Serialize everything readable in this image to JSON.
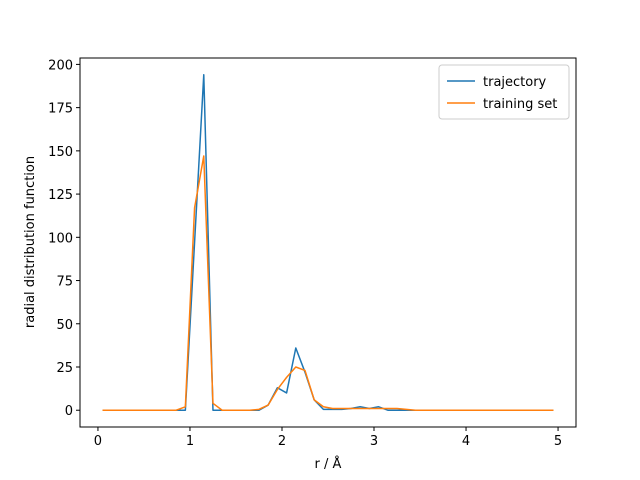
{
  "chart_data": {
    "type": "line",
    "x_label": "r / Å",
    "y_label": "radial distribution function",
    "x": [
      0.05,
      0.15,
      0.25,
      0.35,
      0.45,
      0.55,
      0.65,
      0.75,
      0.85,
      0.95,
      1.05,
      1.15,
      1.25,
      1.35,
      1.45,
      1.55,
      1.65,
      1.75,
      1.85,
      1.95,
      2.05,
      2.15,
      2.25,
      2.35,
      2.45,
      2.55,
      2.65,
      2.75,
      2.85,
      2.95,
      3.05,
      3.15,
      3.25,
      3.35,
      3.45,
      3.55,
      3.65,
      3.75,
      3.85,
      3.95,
      4.05,
      4.15,
      4.25,
      4.35,
      4.45,
      4.55,
      4.65,
      4.75,
      4.85,
      4.95
    ],
    "series": [
      {
        "name": "trajectory",
        "color": "#1f77b4",
        "values": [
          0,
          0,
          0,
          0,
          0,
          0,
          0,
          0,
          0,
          0,
          97,
          194,
          0,
          0,
          0,
          0,
          0,
          0,
          3,
          13,
          10,
          36,
          22,
          6,
          0.5,
          0.5,
          0.5,
          1,
          2,
          1,
          2,
          0,
          0,
          0,
          0,
          0,
          0,
          0,
          0,
          0,
          0,
          0,
          0,
          0,
          0,
          0,
          0,
          0,
          0,
          0
        ]
      },
      {
        "name": "training set",
        "color": "#ff7f0e",
        "values": [
          0,
          0,
          0,
          0,
          0,
          0,
          0,
          0,
          0,
          2,
          117,
          147,
          4,
          0,
          0,
          0,
          0,
          0.5,
          3,
          12,
          19,
          25,
          23,
          6,
          2,
          1,
          1,
          1,
          1,
          1,
          1,
          1,
          1,
          0.5,
          0,
          0,
          0,
          0,
          0,
          0,
          0,
          0,
          0,
          0,
          0,
          0,
          0,
          0,
          0,
          0
        ]
      }
    ],
    "xlim": [
      -0.195,
      5.195
    ],
    "xticks": [
      0,
      1,
      2,
      3,
      4,
      5
    ],
    "ylim": [
      -9.7,
      203.7
    ],
    "yticks": [
      0,
      25,
      50,
      75,
      100,
      125,
      150,
      175,
      200
    ],
    "legend": "upper right"
  }
}
